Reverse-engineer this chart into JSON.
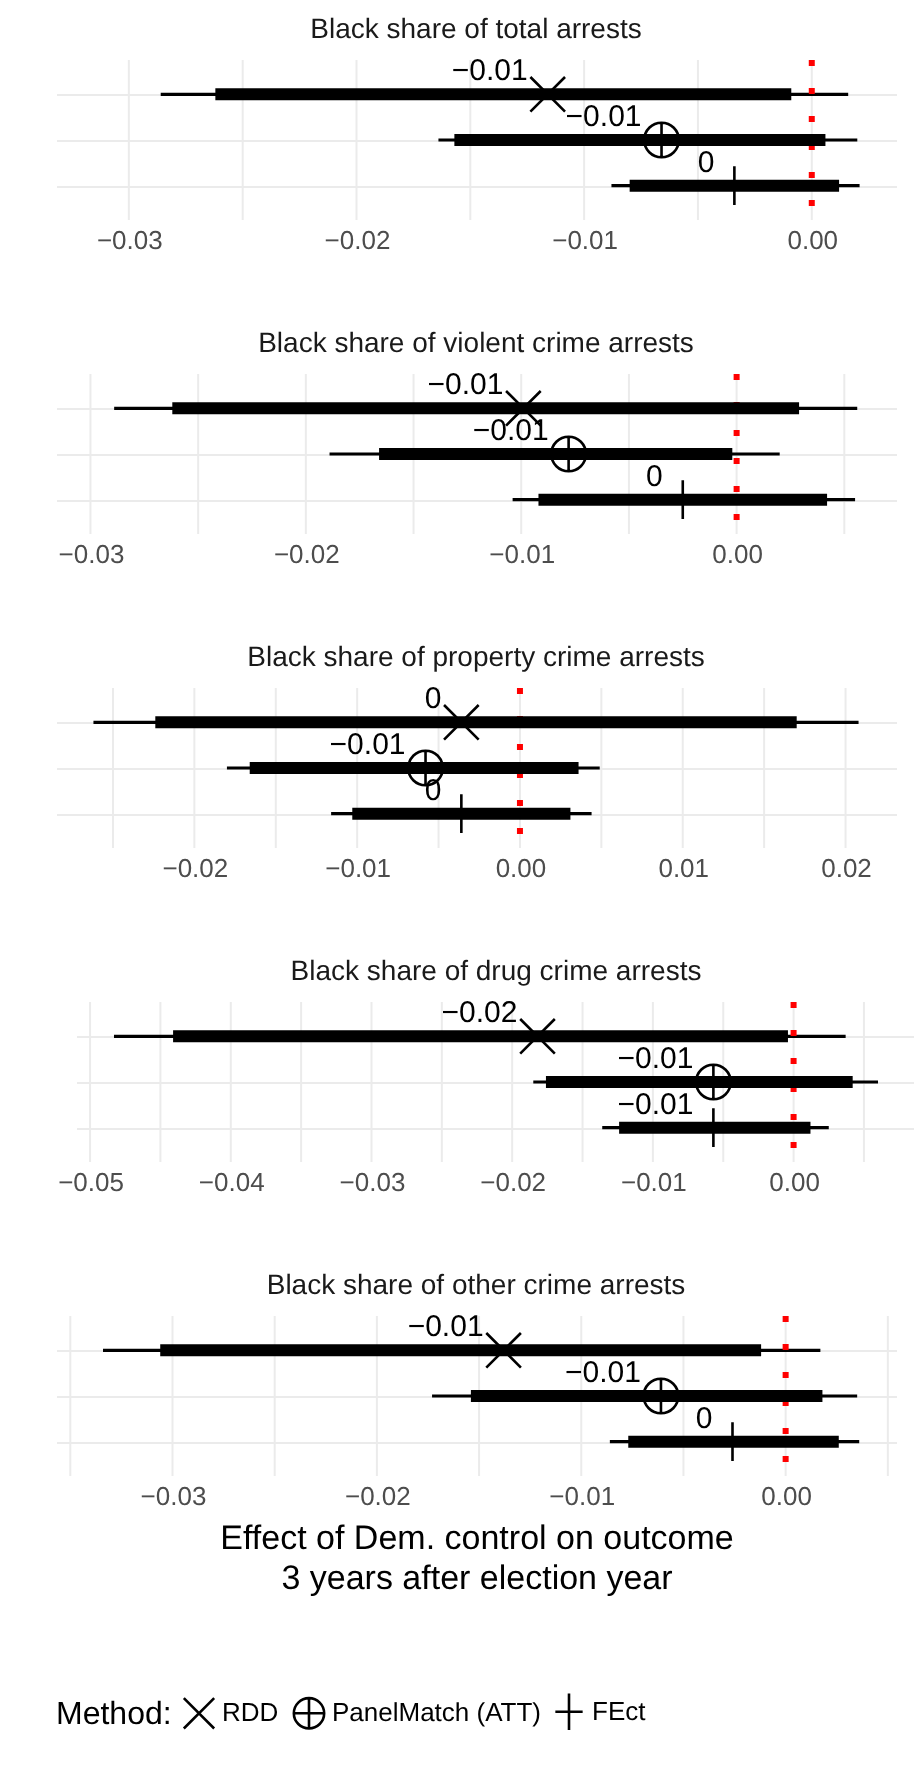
{
  "chart_data": [
    {
      "type": "scatter",
      "title": "Black share of total arrests",
      "orientation": "horizontal",
      "categories": [
        null,
        null,
        null
      ],
      "xlim": [
        -0.0332,
        0.0037
      ],
      "xticks": [
        {
          "value": -0.03,
          "label": "−0.03"
        },
        {
          "value": -0.025,
          "label": null
        },
        {
          "value": -0.02,
          "label": "−0.02"
        },
        {
          "value": -0.015,
          "label": null
        },
        {
          "value": -0.01,
          "label": "−0.01"
        },
        {
          "value": -0.005,
          "label": null
        },
        {
          "value": 0,
          "label": "0.00"
        }
      ],
      "grid": true,
      "ref_lines": [
        {
          "axis": "x",
          "value": 0,
          "color": "#ff0000",
          "line_style": "dotted"
        }
      ],
      "series": [
        {
          "type": "bar",
          "color": "#000000",
          "base": [
            -0.0262,
            -0.0157,
            -0.008
          ],
          "values": [
            0.0253,
            0.0163,
            0.0092
          ]
        },
        {
          "color": "#000000",
          "values": [
            -0.0116,
            null,
            null
          ],
          "errors": [
            [
              -0.0286,
              0.0016
            ],
            null,
            null
          ],
          "value_labels": [
            "−0.01",
            null,
            null
          ]
        },
        {
          "color": "#000000",
          "values": [
            null,
            -0.0066,
            null
          ],
          "errors": [
            null,
            [
              -0.0164,
              0.002
            ],
            null
          ],
          "value_labels": [
            null,
            "−0.01",
            null
          ]
        },
        {
          "color": "#000000",
          "values": [
            null,
            null,
            -0.0034
          ],
          "errors": [
            null,
            null,
            [
              -0.0088,
              0.0021
            ]
          ],
          "value_labels": [
            null,
            null,
            "0"
          ]
        }
      ]
    },
    {
      "type": "scatter",
      "title": "Black share of violent crime arrests",
      "orientation": "horizontal",
      "categories": [
        null,
        null,
        null
      ],
      "xlim": [
        -0.0316,
        0.0074
      ],
      "xticks": [
        {
          "value": -0.03,
          "label": "−0.03"
        },
        {
          "value": -0.025,
          "label": null
        },
        {
          "value": -0.02,
          "label": "−0.02"
        },
        {
          "value": -0.015,
          "label": null
        },
        {
          "value": -0.01,
          "label": "−0.01"
        },
        {
          "value": -0.005,
          "label": null
        },
        {
          "value": 0,
          "label": "0.00"
        },
        {
          "value": 0.005,
          "label": null
        }
      ],
      "grid": true,
      "ref_lines": [
        {
          "axis": "x",
          "value": 0,
          "color": "#ff0000",
          "line_style": "dotted"
        }
      ],
      "series": [
        {
          "type": "bar",
          "color": "#000000",
          "base": [
            -0.0262,
            -0.0166,
            -0.0092
          ],
          "values": [
            0.0291,
            0.0164,
            0.0134
          ]
        },
        {
          "color": "#000000",
          "values": [
            -0.0099,
            null,
            null
          ],
          "errors": [
            [
              -0.0289,
              0.0056
            ],
            null,
            null
          ],
          "value_labels": [
            "−0.01",
            null,
            null
          ]
        },
        {
          "color": "#000000",
          "values": [
            null,
            -0.0078,
            null
          ],
          "errors": [
            null,
            [
              -0.0189,
              0.002
            ],
            null
          ],
          "value_labels": [
            null,
            "−0.01",
            null
          ]
        },
        {
          "color": "#000000",
          "values": [
            null,
            null,
            -0.0025
          ],
          "errors": [
            null,
            null,
            [
              -0.0104,
              0.0055
            ]
          ],
          "value_labels": [
            null,
            null,
            "0"
          ]
        }
      ]
    },
    {
      "type": "scatter",
      "title": "Black share of property crime arrests",
      "orientation": "horizontal",
      "categories": [
        null,
        null,
        null
      ],
      "xlim": [
        -0.0285,
        0.0231
      ],
      "xticks": [
        {
          "value": -0.025,
          "label": null
        },
        {
          "value": -0.02,
          "label": "−0.02"
        },
        {
          "value": -0.015,
          "label": null
        },
        {
          "value": -0.01,
          "label": "−0.01"
        },
        {
          "value": -0.005,
          "label": null
        },
        {
          "value": 0,
          "label": "0.00"
        },
        {
          "value": 0.005,
          "label": null
        },
        0.01,
        {
          "value": 0.015,
          "label": null
        },
        0.02
      ],
      "grid": true,
      "ref_lines": [
        {
          "axis": "x",
          "value": 0,
          "color": "#ff0000",
          "line_style": "dotted"
        }
      ],
      "series": [
        {
          "type": "bar",
          "color": "#000000",
          "base": [
            -0.0224,
            -0.0166,
            -0.0103
          ],
          "values": [
            0.0394,
            0.0202,
            0.0134
          ]
        },
        {
          "color": "#000000",
          "values": [
            -0.0036,
            null,
            null
          ],
          "errors": [
            [
              -0.0262,
              0.0208
            ],
            null,
            null
          ],
          "value_labels": [
            "0",
            null,
            null
          ]
        },
        {
          "color": "#000000",
          "values": [
            null,
            -0.0058,
            null
          ],
          "errors": [
            null,
            [
              -0.018,
              0.0049
            ],
            null
          ],
          "value_labels": [
            null,
            "−0.01",
            null
          ]
        },
        {
          "color": "#000000",
          "values": [
            null,
            null,
            -0.0036
          ],
          "errors": [
            null,
            null,
            [
              -0.0116,
              0.0044
            ]
          ],
          "value_labels": [
            null,
            null,
            "0"
          ]
        }
      ]
    },
    {
      "type": "scatter",
      "title": "Black share of drug crime arrests",
      "orientation": "horizontal",
      "categories": [
        null,
        null,
        null
      ],
      "xlim": [
        -0.051,
        0.0087
      ],
      "xticks": [
        {
          "value": -0.05,
          "label": "−0.05"
        },
        {
          "value": -0.045,
          "label": null
        },
        {
          "value": -0.04,
          "label": "−0.04"
        },
        {
          "value": -0.035,
          "label": null
        },
        {
          "value": -0.03,
          "label": "−0.03"
        },
        {
          "value": -0.025,
          "label": null
        },
        {
          "value": -0.02,
          "label": "−0.02"
        },
        {
          "value": -0.015,
          "label": null
        },
        {
          "value": -0.01,
          "label": "−0.01"
        },
        {
          "value": -0.005,
          "label": null
        },
        {
          "value": 0,
          "label": "0.00"
        },
        {
          "value": 0.005,
          "label": null
        }
      ],
      "grid": true,
      "ref_lines": [
        {
          "axis": "x",
          "value": 0,
          "color": "#ff0000",
          "line_style": "dotted"
        }
      ],
      "series": [
        {
          "type": "bar",
          "color": "#000000",
          "base": [
            -0.0441,
            -0.0176,
            -0.0124
          ],
          "values": [
            0.0437,
            0.0218,
            0.0136
          ]
        },
        {
          "color": "#000000",
          "values": [
            -0.0182,
            null,
            null
          ],
          "errors": [
            [
              -0.0483,
              0.0037
            ],
            null,
            null
          ],
          "value_labels": [
            "−0.02",
            null,
            null
          ]
        },
        {
          "color": "#000000",
          "values": [
            null,
            -0.0057,
            null
          ],
          "errors": [
            null,
            [
              -0.0185,
              0.006
            ],
            null
          ],
          "value_labels": [
            null,
            "−0.01",
            null
          ]
        },
        {
          "color": "#000000",
          "values": [
            null,
            null,
            -0.0057
          ],
          "errors": [
            null,
            null,
            [
              -0.0136,
              0.0025
            ]
          ],
          "value_labels": [
            null,
            null,
            "−0.01"
          ]
        }
      ]
    },
    {
      "type": "scatter",
      "title": "Black share of other crime arrests",
      "orientation": "horizontal",
      "categories": [
        null,
        null,
        null
      ],
      "xlim": [
        -0.0357,
        0.0054
      ],
      "xticks": [
        {
          "value": -0.035,
          "label": null
        },
        {
          "value": -0.03,
          "label": "−0.03"
        },
        {
          "value": -0.025,
          "label": null
        },
        {
          "value": -0.02,
          "label": "−0.02"
        },
        {
          "value": -0.015,
          "label": null
        },
        {
          "value": -0.01,
          "label": "−0.01"
        },
        {
          "value": -0.005,
          "label": null
        },
        {
          "value": 0,
          "label": "0.00"
        },
        {
          "value": 0.005,
          "label": null
        }
      ],
      "grid": true,
      "ref_lines": [
        {
          "axis": "x",
          "value": 0,
          "color": "#ff0000",
          "line_style": "dotted"
        }
      ],
      "xlabel": "Effect of Dem. control on outcome\n3 years after election year",
      "legend_title": "Method:",
      "legend": "bottom",
      "series": [
        {
          "type": "bar",
          "color": "#000000",
          "base": [
            -0.0306,
            -0.0154,
            -0.0077
          ],
          "values": [
            0.0294,
            0.0172,
            0.0103
          ]
        },
        {
          "name": "RDD",
          "color": "#000000",
          "values": [
            -0.0138,
            null,
            null
          ],
          "errors": [
            [
              -0.0334,
              0.0017
            ],
            null,
            null
          ],
          "value_labels": [
            "−0.01",
            null,
            null
          ]
        },
        {
          "name": "PanelMatch (ATT)",
          "color": "#000000",
          "values": [
            null,
            -0.0061,
            null
          ],
          "errors": [
            null,
            [
              -0.0173,
              0.0035
            ],
            null
          ],
          "value_labels": [
            null,
            "−0.01",
            null
          ]
        },
        {
          "name": "FEct",
          "color": "#000000",
          "values": [
            null,
            null,
            -0.0026
          ],
          "errors": [
            null,
            null,
            [
              -0.0086,
              0.0036
            ]
          ],
          "value_labels": [
            null,
            null,
            "0"
          ]
        }
      ]
    }
  ]
}
